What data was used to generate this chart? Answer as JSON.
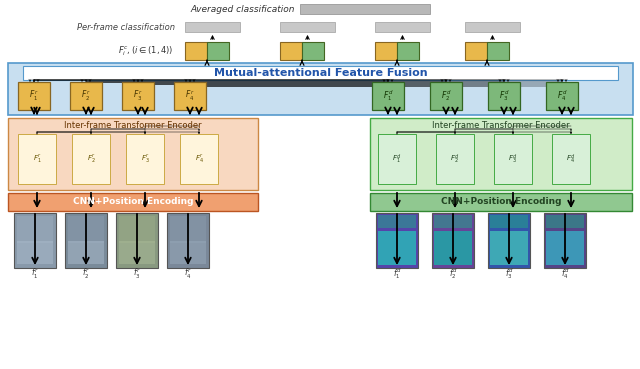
{
  "fig_width": 6.4,
  "fig_height": 3.69,
  "dpi": 100,
  "bg_color": "#ffffff",
  "colors": {
    "yellow_box": "#E8B84B",
    "green_box": "#7DB87A",
    "light_yellow_enc": "#F5E6C8",
    "light_green_enc": "#C8E8C0",
    "orange_cnn": "#F0A070",
    "green_cnn": "#90C890",
    "blue_bg": "#C8DFF0",
    "gray_bar": "#B8B8B8",
    "light_gray": "#C8C8C8",
    "white": "#FFFFFF",
    "black": "#000000",
    "border_blue": "#5599CC",
    "orange_enc_border": "#CC8844",
    "green_enc_border": "#44AA44"
  },
  "title_text": "Averaged classification",
  "per_frame_text": "Per-frame classification",
  "fusion_text": "Mutual-attentional Feature Fusion",
  "encoder_text": "Inter-frame Transformer Encoder",
  "cnn_text": "CNN+Position Encoding"
}
